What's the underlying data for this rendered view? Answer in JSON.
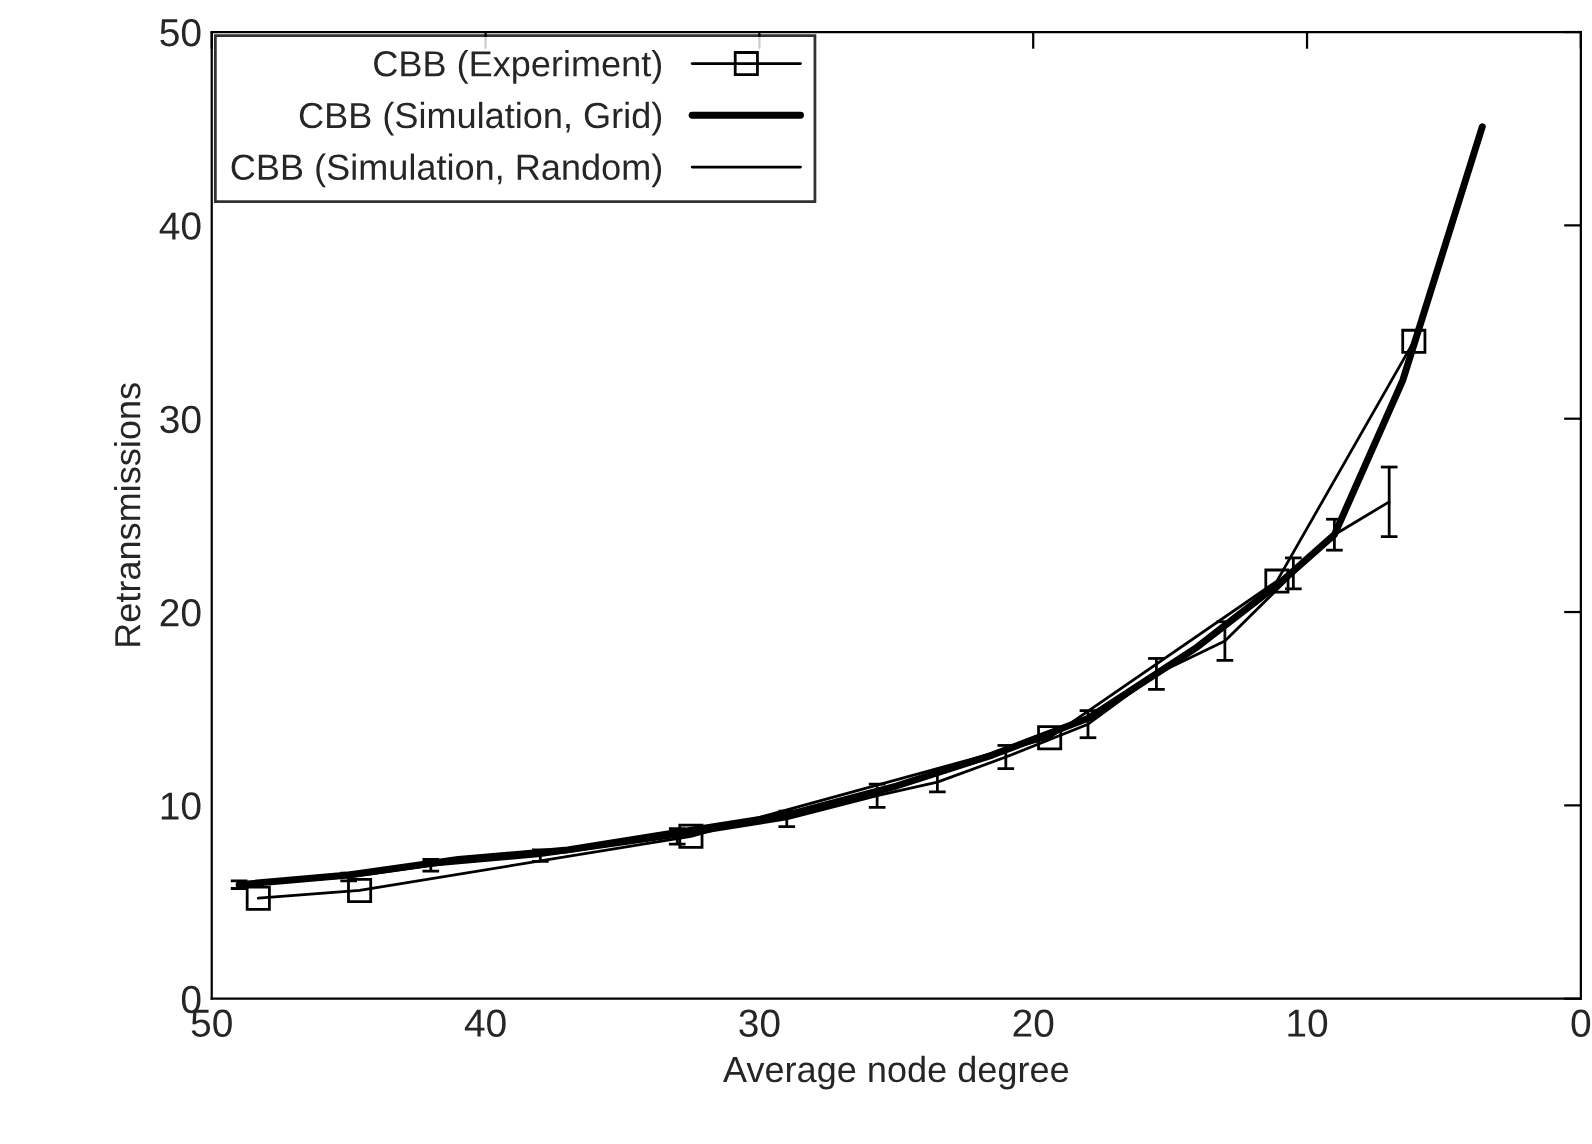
{
  "chart_data": {
    "type": "line",
    "xlabel": "Average node degree",
    "ylabel": "Retransmissions",
    "xlim": [
      50,
      0
    ],
    "ylim": [
      0,
      50
    ],
    "xticks": [
      50,
      40,
      30,
      20,
      10,
      0
    ],
    "yticks": [
      0,
      10,
      20,
      30,
      40,
      50
    ],
    "grid": false,
    "legend": "top left",
    "series": [
      {
        "name": "CBB (Experiment)",
        "color": "#000000",
        "marker": "square",
        "x": [
          48.3,
          44.6,
          32.5,
          19.4,
          11.1,
          6.1
        ],
        "values": [
          5.2,
          5.6,
          8.4,
          13.5,
          21.6,
          34.0
        ]
      },
      {
        "name": "CBB (Simulation, Grid)",
        "color": "#000000",
        "marker": "none",
        "x": [
          49,
          45,
          41,
          37,
          33,
          29,
          25,
          21.5,
          18,
          14,
          11,
          9,
          6.5,
          3.6
        ],
        "values": [
          5.9,
          6.4,
          7.2,
          7.7,
          8.6,
          9.5,
          11.0,
          12.6,
          14.5,
          18.2,
          21.5,
          24.0,
          32.0,
          45.1
        ]
      },
      {
        "name": "CBB (Simulation, Random)",
        "color": "#000000",
        "marker": "none",
        "x": [
          49,
          45,
          42,
          38,
          33,
          29,
          25.7,
          23.5,
          21,
          18,
          15.5,
          13,
          10.5,
          9,
          7
        ],
        "values": [
          5.9,
          6.3,
          6.9,
          7.4,
          8.4,
          9.3,
          10.5,
          11.2,
          12.5,
          14.2,
          16.8,
          18.5,
          22.0,
          24.0,
          25.7
        ],
        "errors": [
          0.2,
          0.2,
          0.3,
          0.3,
          0.4,
          0.4,
          0.6,
          0.5,
          0.6,
          0.7,
          0.8,
          1.0,
          0.8,
          0.8,
          1.8
        ]
      }
    ]
  }
}
